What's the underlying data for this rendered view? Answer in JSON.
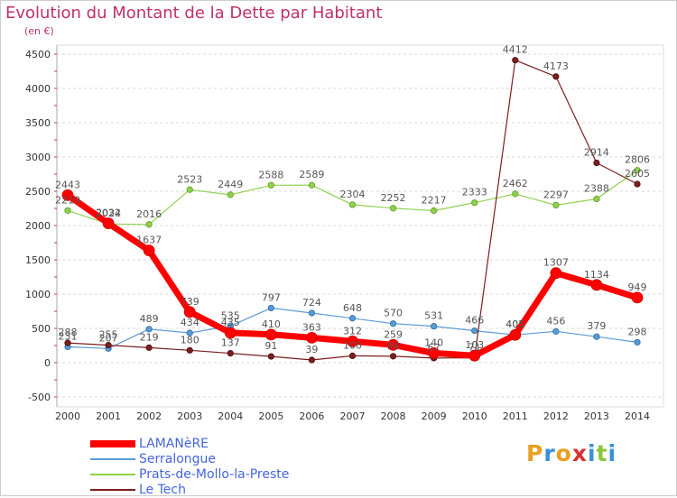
{
  "title": "Evolution du Montant de la Dette par Habitant",
  "unit": "(en €)",
  "logo": {
    "text": "Proxiti",
    "colors": [
      "#e8a020",
      "#3b8fd8",
      "#e8a020",
      "#d83030",
      "#3b8fd8",
      "#8cc63f",
      "#3b8fd8"
    ]
  },
  "chart_data": {
    "type": "line",
    "title": "Evolution du Montant de la Dette par Habitant",
    "ylabel": "(en €)",
    "xlabel": "",
    "ylim": [
      -500,
      4500
    ],
    "yticks": [
      "-500",
      "0",
      "500",
      "1000",
      "1500",
      "2000",
      "2500",
      "3000",
      "3500",
      "4000",
      "4500"
    ],
    "ytick_values": [
      -500,
      0,
      500,
      1000,
      1500,
      2000,
      2500,
      3000,
      3500,
      4000,
      4500
    ],
    "x": [
      "2000",
      "2001",
      "2002",
      "2003",
      "2004",
      "2005",
      "2006",
      "2007",
      "2008",
      "2009",
      "2010",
      "2011",
      "2012",
      "2013",
      "2014"
    ],
    "grid": "horizontal dashed",
    "legend_position": "bottom-left",
    "series": [
      {
        "name": "LAMANèRE",
        "color": "#ff0000",
        "values": [
          2443,
          2032,
          1637,
          739,
          435,
          410,
          363,
          312,
          259,
          140,
          103,
          405,
          1307,
          1134,
          949
        ]
      },
      {
        "name": "Serralongue",
        "color": "#5b9bd5",
        "values": [
          231,
          207,
          489,
          434,
          535,
          797,
          724,
          648,
          570,
          531,
          466,
          405,
          456,
          379,
          298
        ]
      },
      {
        "name": "Prats-de-Mollo-la-Preste",
        "color": "#8fd14f",
        "values": [
          2219,
          2024,
          2016,
          2523,
          2449,
          2588,
          2589,
          2304,
          2252,
          2217,
          2333,
          2462,
          2297,
          2388,
          2806
        ]
      },
      {
        "name": "Le Tech",
        "color": "#7b1e1e",
        "values": [
          288,
          255,
          219,
          180,
          137,
          91,
          39,
          100,
          94,
          67,
          71,
          4412,
          4173,
          2914,
          2605
        ]
      }
    ]
  }
}
